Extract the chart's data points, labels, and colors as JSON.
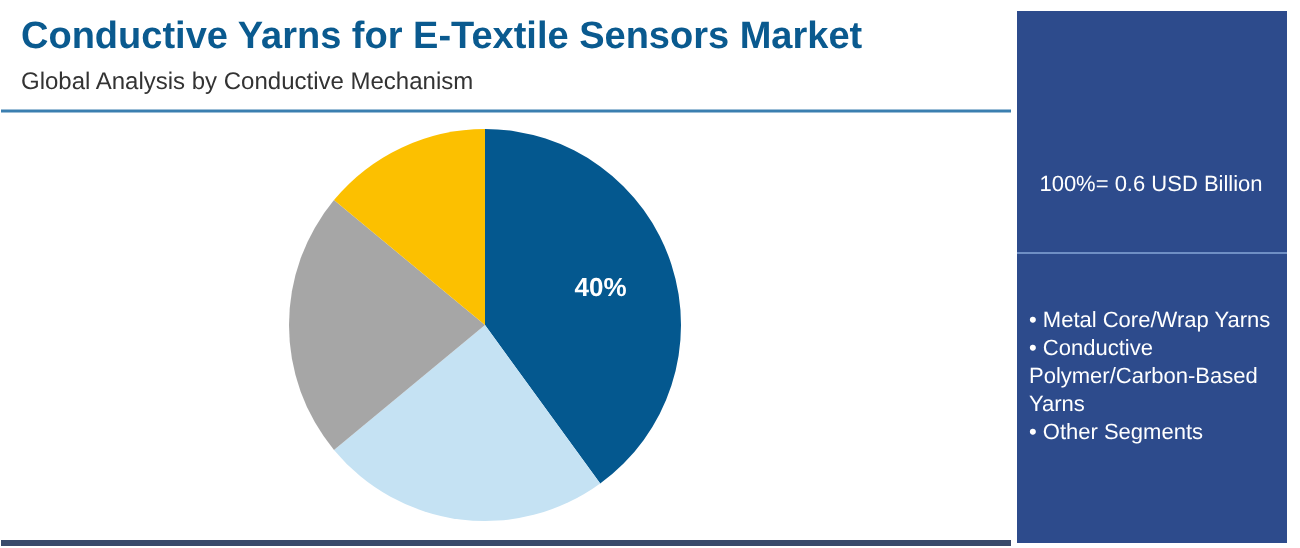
{
  "chart_data": {
    "type": "pie",
    "title": "Conductive Yarns for E-Textile Sensors Market",
    "subtitle": "Global Analysis by Conductive Mechanism",
    "categories": [
      null,
      null,
      null,
      null
    ],
    "values": [
      40,
      24,
      22,
      14
    ],
    "colors": [
      "#04588f",
      "#c5e2f3",
      "#a6a6a6",
      "#fcc000"
    ],
    "value_labels": [
      "40%",
      null,
      null,
      null
    ],
    "annotations": [
      "100%= 0.6 USD Billion",
      "• Metal Core/Wrap Yarns",
      "• Conductive Polymer/Carbon-Based Yarns",
      "• Other Segments"
    ]
  }
}
